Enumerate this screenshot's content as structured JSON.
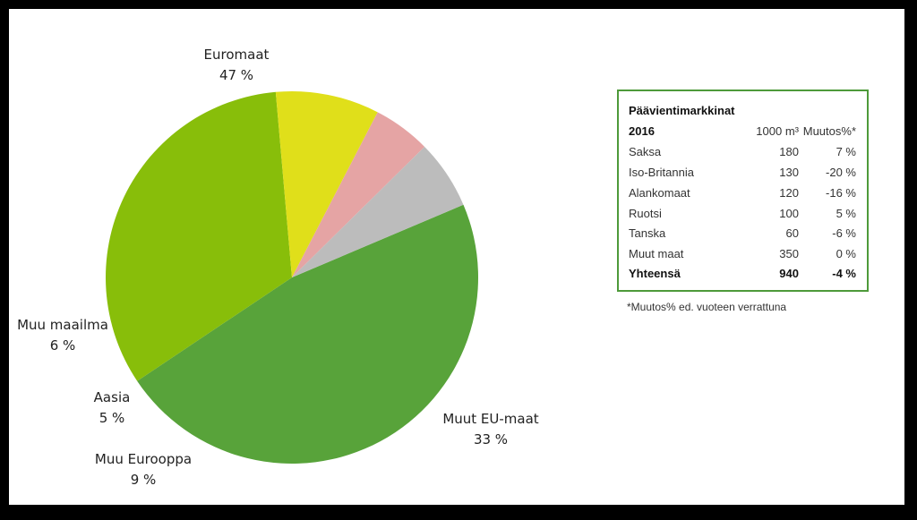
{
  "chart_data": {
    "type": "pie",
    "slices": [
      {
        "label": "Euromaat",
        "value": 47,
        "display": "47 %",
        "color": "#58a33a"
      },
      {
        "label": "Muut EU-maat",
        "value": 33,
        "display": "33 %",
        "color": "#88be0a"
      },
      {
        "label": "Muu Eurooppa",
        "value": 9,
        "display": "9 %",
        "color": "#e0df1a"
      },
      {
        "label": "Aasia",
        "value": 5,
        "display": "5 %",
        "color": "#e5a4a4"
      },
      {
        "label": "Muu maailma",
        "value": 6,
        "display": "6 %",
        "color": "#bcbcbc"
      }
    ]
  },
  "table": {
    "title": "Päävientimarkkinat",
    "header": {
      "year": "2016",
      "volume": "1000 m³",
      "change": "Muutos%*"
    },
    "rows": [
      {
        "country": "Saksa",
        "volume": "180",
        "change": "7 %"
      },
      {
        "country": "Iso-Britannia",
        "volume": "130",
        "change": "-20 %"
      },
      {
        "country": "Alankomaat",
        "volume": "120",
        "change": "-16 %"
      },
      {
        "country": "Ruotsi",
        "volume": "100",
        "change": "5 %"
      },
      {
        "country": "Tanska",
        "volume": "60",
        "change": "-6 %"
      },
      {
        "country": "Muut maat",
        "volume": "350",
        "change": "0 %"
      }
    ],
    "total": {
      "label": "Yhteensä",
      "volume": "940",
      "change": "-4 %"
    },
    "footnote": "*Muutos% ed. vuoteen verrattuna"
  }
}
